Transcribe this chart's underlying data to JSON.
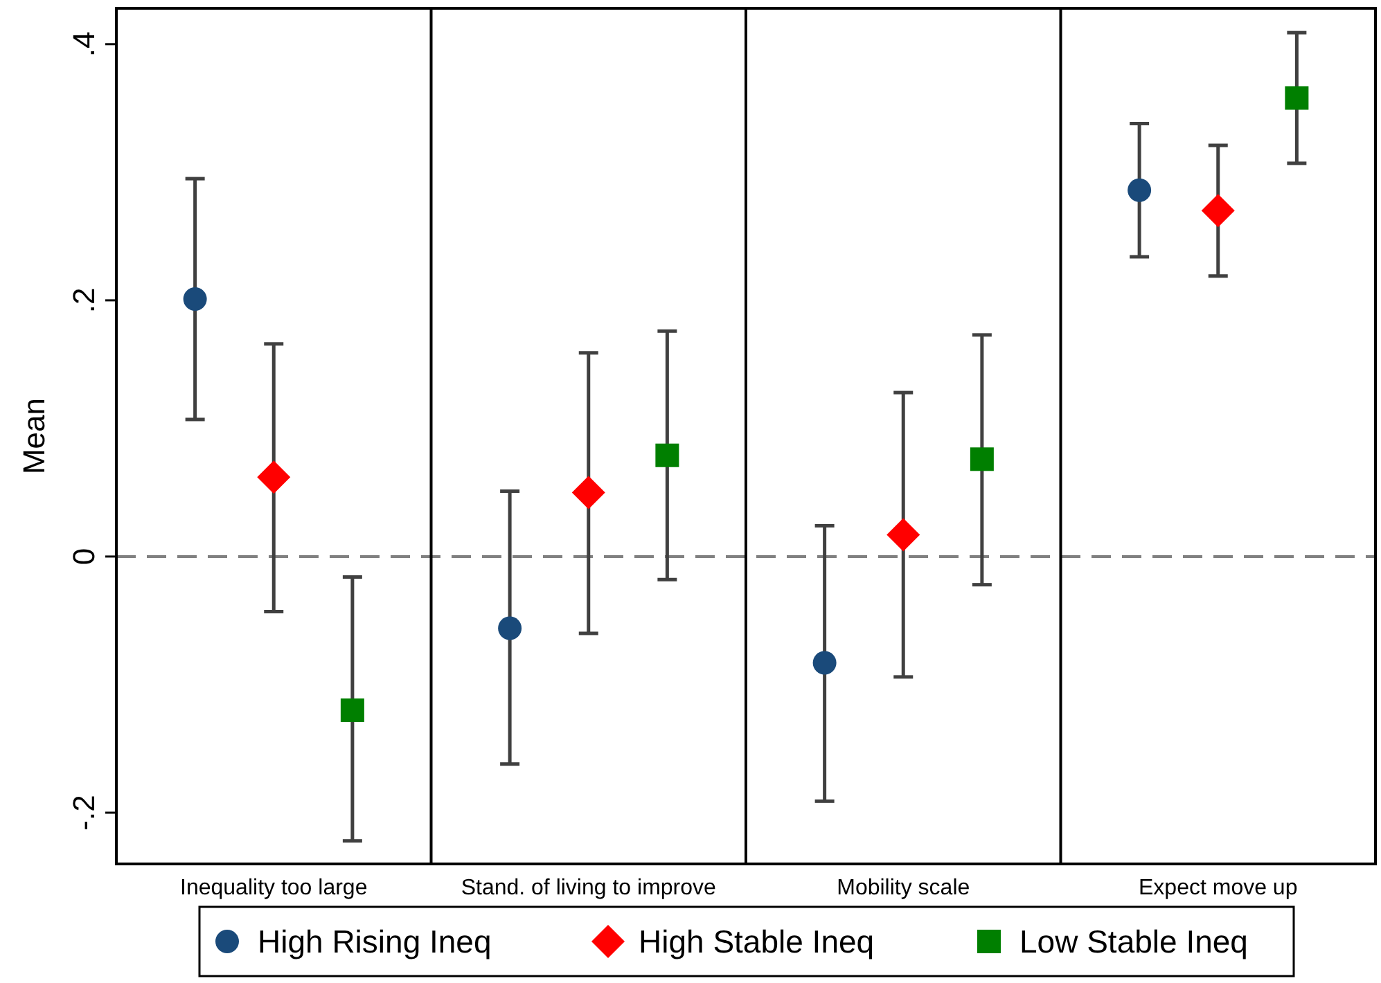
{
  "chart_data": {
    "type": "scatter",
    "ylabel": "Mean",
    "categories": [
      "Inequality too large",
      "Stand. of living to improve",
      "Mobility scale",
      "Expect move up"
    ],
    "series": [
      {
        "name": "High Rising Ineq",
        "color": "#1a4a7a",
        "marker": "circle",
        "values": [
          0.201,
          -0.056,
          -0.083,
          0.286
        ],
        "errors": [
          [
            0.107,
            0.295
          ],
          [
            -0.162,
            0.051
          ],
          [
            -0.191,
            0.024
          ],
          [
            0.234,
            0.338
          ]
        ]
      },
      {
        "name": "High Stable Ineq",
        "color": "#ff0000",
        "marker": "diamond",
        "values": [
          0.062,
          0.05,
          0.017,
          0.27
        ],
        "errors": [
          [
            -0.043,
            0.166
          ],
          [
            -0.06,
            0.159
          ],
          [
            -0.094,
            0.128
          ],
          [
            0.219,
            0.321
          ]
        ]
      },
      {
        "name": "Low Stable Ineq",
        "color": "#007f00",
        "marker": "square",
        "values": [
          -0.12,
          0.079,
          0.076,
          0.358
        ],
        "errors": [
          [
            -0.222,
            -0.016
          ],
          [
            -0.018,
            0.176
          ],
          [
            -0.022,
            0.173
          ],
          [
            0.307,
            0.409
          ]
        ]
      }
    ],
    "ylim": [
      -0.24,
      0.428
    ],
    "yticks": [
      {
        "value": -0.2,
        "label": "-.2"
      },
      0,
      {
        "value": 0.2,
        "label": ".2"
      },
      {
        "value": 0.4,
        "label": ".4"
      }
    ],
    "ref_lines": [
      {
        "axis": "y",
        "value": 0,
        "color": "#808080",
        "line_style": "dashed"
      }
    ],
    "grid": false,
    "legend": "bottom"
  }
}
